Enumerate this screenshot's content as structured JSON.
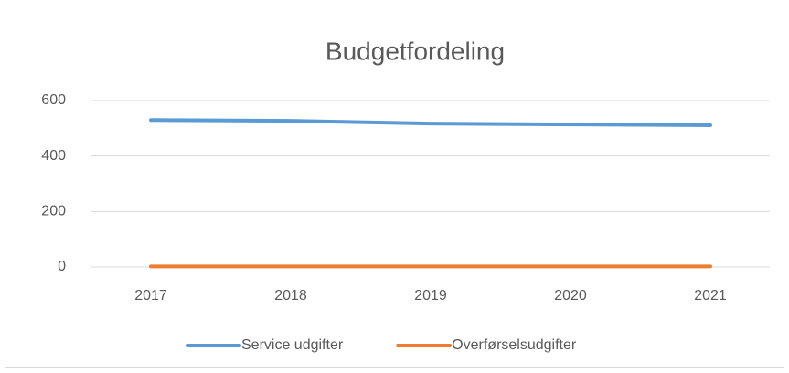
{
  "chart_data": {
    "type": "line",
    "title": "Budgetfordeling",
    "categories": [
      "2017",
      "2018",
      "2019",
      "2020",
      "2021"
    ],
    "series": [
      {
        "name": "Service udgifter",
        "color": "#5b9bd5",
        "values": [
          530,
          527,
          517,
          514,
          511
        ]
      },
      {
        "name": "Overførselsudgifter",
        "color": "#ed7d31",
        "values": [
          2,
          2,
          2,
          2,
          2
        ]
      }
    ],
    "ylim": [
      0,
      600
    ],
    "yticks": [
      0,
      200,
      400,
      600
    ],
    "grid": true,
    "legend": "bottom"
  }
}
